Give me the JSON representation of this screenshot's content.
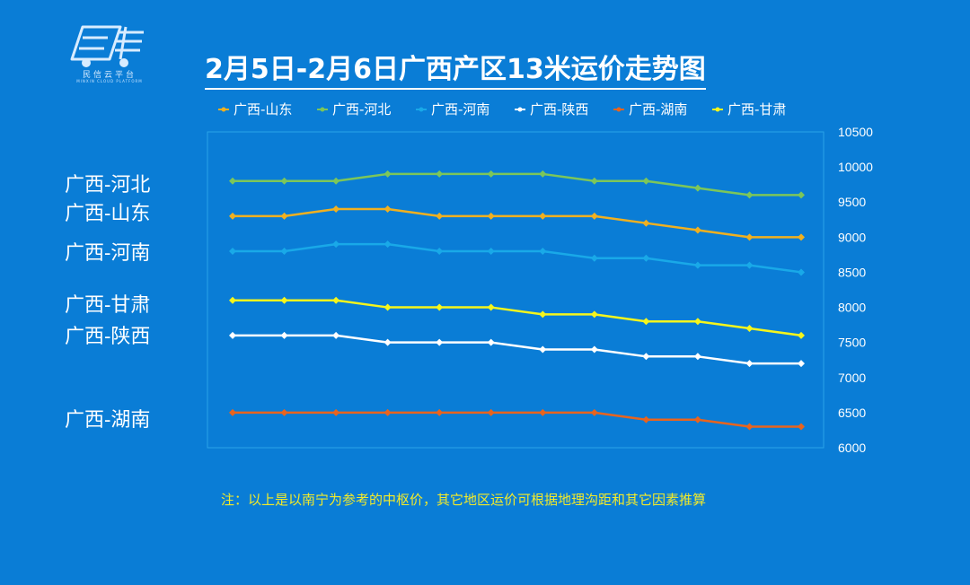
{
  "logo": {
    "name": "民信云平台",
    "sub": "MINXIN CLOUD PLATFORM"
  },
  "title": "2月5日-2月6日广西产区13米运价走势图",
  "side_labels": [
    "广西-河北",
    "广西-山东",
    "广西-河南",
    "广西-甘肃",
    "广西-陕西",
    "广西-湖南"
  ],
  "footnote": "注：以上是以南宁为参考的中枢价，其它地区运价可根据地理沟距和其它因素推算",
  "chart_data": {
    "type": "line",
    "title": "2月5日-2月6日广西产区13米运价走势图",
    "xlabel": "",
    "ylabel": "",
    "ylim": [
      6000,
      10500
    ],
    "yticks": [
      "10500",
      "10000",
      "9500",
      "9000",
      "8500",
      "8000",
      "7500",
      "7000",
      "6500",
      "6000"
    ],
    "y_axis_position": "right",
    "legend_position": "top",
    "grid": false,
    "series": [
      {
        "name": "广西-山东",
        "color": "#f0b020",
        "values": [
          9300,
          9300,
          9400,
          9400,
          9300,
          9300,
          9300,
          9300,
          9200,
          9100,
          9000,
          9000
        ]
      },
      {
        "name": "广西-河北",
        "color": "#7cc65a",
        "values": [
          9800,
          9800,
          9800,
          9900,
          9900,
          9900,
          9900,
          9800,
          9800,
          9700,
          9600,
          9600
        ]
      },
      {
        "name": "广西-河南",
        "color": "#19a9e8",
        "values": [
          8800,
          8800,
          8900,
          8900,
          8800,
          8800,
          8800,
          8700,
          8700,
          8600,
          8600,
          8500
        ]
      },
      {
        "name": "广西-陕西",
        "color": "#ffffff",
        "values": [
          7600,
          7600,
          7600,
          7500,
          7500,
          7500,
          7400,
          7400,
          7300,
          7300,
          7200,
          7200
        ]
      },
      {
        "name": "广西-湖南",
        "color": "#e8641e",
        "values": [
          6500,
          6500,
          6500,
          6500,
          6500,
          6500,
          6500,
          6500,
          6400,
          6400,
          6300,
          6300
        ]
      },
      {
        "name": "广西-甘肃",
        "color": "#f5f51c",
        "values": [
          8100,
          8100,
          8100,
          8000,
          8000,
          8000,
          7900,
          7900,
          7800,
          7800,
          7700,
          7600
        ]
      }
    ]
  }
}
